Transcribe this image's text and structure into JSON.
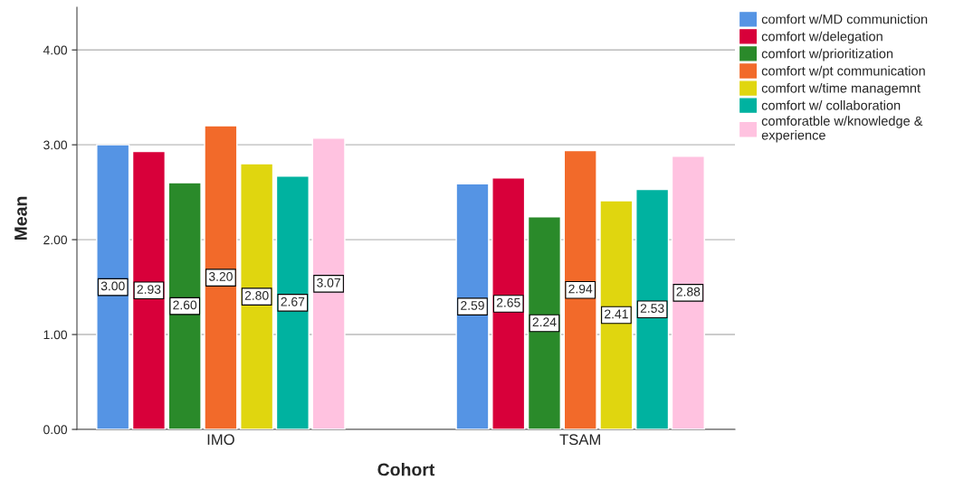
{
  "chart_data": {
    "type": "bar",
    "xlabel": "Cohort",
    "ylabel": "Mean",
    "categories": [
      "IMO",
      "TSAM"
    ],
    "series": [
      {
        "name": "comfort w/MD communiction",
        "color": "#5594e4",
        "values": [
          3.0,
          2.59
        ],
        "value_labels": [
          "3.00",
          "2.59"
        ]
      },
      {
        "name": "comfort w/delegation",
        "color": "#d8003a",
        "values": [
          2.93,
          2.65
        ],
        "value_labels": [
          "2.93",
          "2.65"
        ]
      },
      {
        "name": "comfort w/prioritization",
        "color": "#2a8a2a",
        "values": [
          2.6,
          2.24
        ],
        "value_labels": [
          "2.60",
          "2.24"
        ]
      },
      {
        "name": "comfort w/pt communication",
        "color": "#f26a2a",
        "values": [
          3.2,
          2.94
        ],
        "value_labels": [
          "3.20",
          "2.94"
        ]
      },
      {
        "name": "comfort w/time managemnt",
        "color": "#e0d60f",
        "values": [
          2.8,
          2.41
        ],
        "value_labels": [
          "2.80",
          "2.41"
        ]
      },
      {
        "name": "comfort w/ collaboration",
        "color": "#00b2a0",
        "values": [
          2.67,
          2.53
        ],
        "value_labels": [
          "2.67",
          "2.53"
        ]
      },
      {
        "name": "comforatble w/knowledge &\nexperience",
        "color": "#ffc2e0",
        "values": [
          3.07,
          2.88
        ],
        "value_labels": [
          "3.07",
          "2.88"
        ]
      }
    ],
    "ylim": [
      0,
      4.45
    ],
    "yticks": [
      {
        "value": 0,
        "label": "0.00"
      },
      {
        "value": 1,
        "label": "1.00"
      },
      {
        "value": 2,
        "label": "2.00"
      },
      {
        "value": 3,
        "label": "3.00"
      },
      {
        "value": 4,
        "label": "4.00"
      }
    ],
    "grid": "y",
    "legend": "top right"
  }
}
